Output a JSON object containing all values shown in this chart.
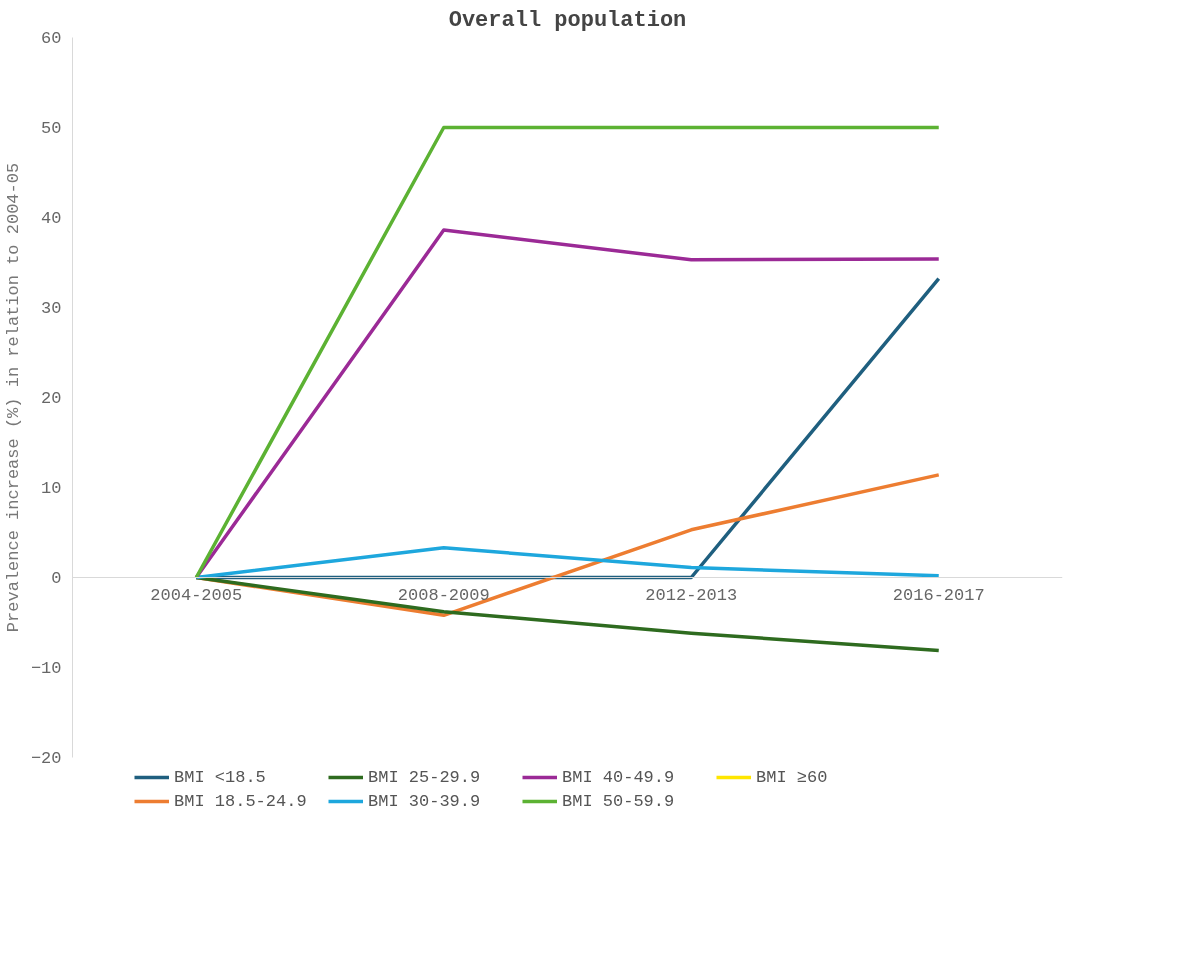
{
  "chart_data": {
    "type": "line",
    "title": "Overall population",
    "ylabel": "Prevalence increase (%) in relation to 2004-05",
    "categories": [
      "2004-2005",
      "2008-2009",
      "2012-2013",
      "2016-2017"
    ],
    "series": [
      {
        "name": "BMI <18.5",
        "color": "#1f5f7f",
        "values": [
          0,
          0,
          0,
          33.2
        ]
      },
      {
        "name": "BMI 18.5-24.9",
        "color": "#ed7d31",
        "values": [
          0,
          -4.2,
          5.3,
          11.4
        ]
      },
      {
        "name": "BMI 25-29.9",
        "color": "#2e6b1f",
        "values": [
          0,
          -3.8,
          -6.2,
          -8.1
        ]
      },
      {
        "name": "BMI 30-39.9",
        "color": "#1ea7dd",
        "values": [
          0,
          3.3,
          1.1,
          0.2
        ]
      },
      {
        "name": "BMI 40-49.9",
        "color": "#9b2a96",
        "values": [
          0,
          38.6,
          35.3,
          35.4
        ]
      },
      {
        "name": "BMI 50-59.9",
        "color": "#5cb233",
        "values": [
          0,
          50,
          50,
          50
        ]
      },
      {
        "name": "BMI ≥60",
        "color": "#ffe600",
        "values": [
          null,
          null,
          null,
          null
        ]
      }
    ],
    "ylim": [
      -20,
      60
    ],
    "yticks": [
      -20,
      -10,
      0,
      10,
      20,
      30,
      40,
      50,
      60
    ],
    "grid": false,
    "legend": "bottom",
    "marker": "none",
    "line_style": "solid"
  }
}
